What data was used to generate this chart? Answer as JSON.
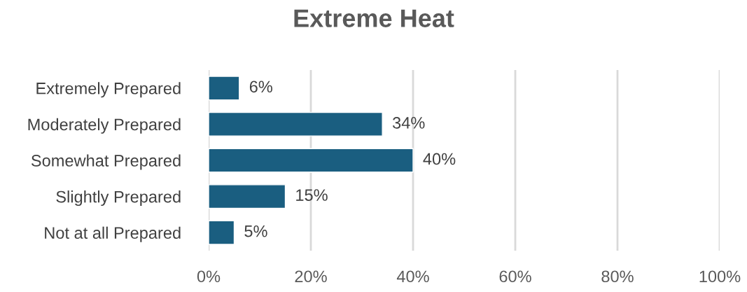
{
  "chart_data": {
    "type": "bar",
    "orientation": "horizontal",
    "title": "Extreme Heat",
    "categories": [
      "Extremely Prepared",
      "Moderately Prepared",
      "Somewhat Prepared",
      "Slightly Prepared",
      "Not at all Prepared"
    ],
    "values": [
      6,
      34,
      40,
      15,
      5
    ],
    "value_labels": [
      "6%",
      "34%",
      "40%",
      "15%",
      "5%"
    ],
    "color": "#1a5e80",
    "xlim": [
      0,
      100
    ],
    "xticks": [
      {
        "value": 0,
        "label": "0%"
      },
      {
        "value": 20,
        "label": "20%"
      },
      {
        "value": 40,
        "label": "40%"
      },
      {
        "value": 60,
        "label": "60%"
      },
      {
        "value": 80,
        "label": "80%"
      },
      {
        "value": 100,
        "label": "100%"
      }
    ],
    "grid": "x"
  }
}
